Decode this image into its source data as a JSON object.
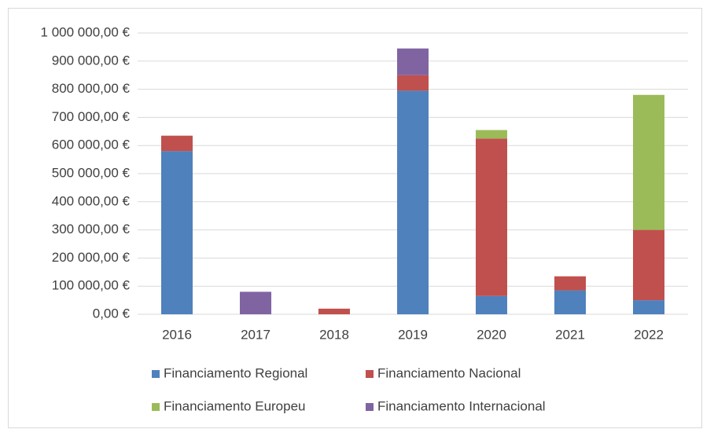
{
  "chart_data": {
    "type": "stacked-bar",
    "categories": [
      "2016",
      "2017",
      "2018",
      "2019",
      "2020",
      "2021",
      "2022"
    ],
    "series": [
      {
        "name": "Financiamento Regional",
        "color": "#4f81bd",
        "values": [
          580000,
          0,
          0,
          795000,
          65000,
          85000,
          50000
        ]
      },
      {
        "name": "Financiamento Nacional",
        "color": "#c0504d",
        "values": [
          55000,
          0,
          20000,
          55000,
          560000,
          50000,
          250000
        ]
      },
      {
        "name": "Financiamento Europeu",
        "color": "#9bbb59",
        "values": [
          0,
          0,
          0,
          0,
          30000,
          0,
          480000
        ]
      },
      {
        "name": "Financiamento Internacional",
        "color": "#8064a2",
        "values": [
          0,
          80000,
          0,
          95000,
          0,
          0,
          0
        ]
      }
    ],
    "ylim": [
      0,
      1000000
    ],
    "yticks": [
      {
        "value": 0,
        "label": "0,00 €"
      },
      {
        "value": 100000,
        "label": "100 000,00 €"
      },
      {
        "value": 200000,
        "label": "200 000,00 €"
      },
      {
        "value": 300000,
        "label": "300 000,00 €"
      },
      {
        "value": 400000,
        "label": "400 000,00 €"
      },
      {
        "value": 500000,
        "label": "500 000,00 €"
      },
      {
        "value": 600000,
        "label": "600 000,00 €"
      },
      {
        "value": 700000,
        "label": "700 000,00 €"
      },
      {
        "value": 800000,
        "label": "800 000,00 €"
      },
      {
        "value": 900000,
        "label": "900 000,00 €"
      },
      {
        "value": 1000000,
        "label": "1 000 000,00 €"
      }
    ],
    "grid": true
  }
}
